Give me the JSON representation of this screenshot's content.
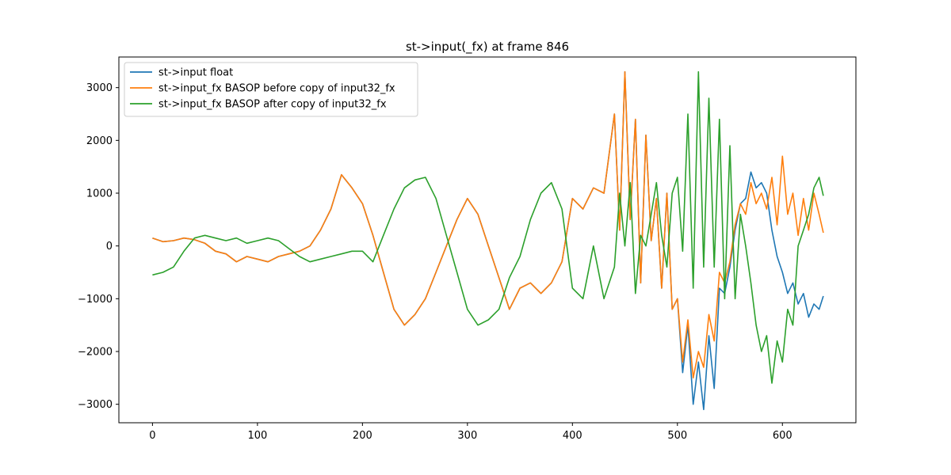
{
  "chart_data": {
    "type": "line",
    "title": "st->input(_fx) at frame 846",
    "xlabel": "",
    "ylabel": "",
    "xlim": [
      -32,
      670
    ],
    "ylim": [
      -3350,
      3580
    ],
    "x_ticks": [
      0,
      100,
      200,
      300,
      400,
      500,
      600
    ],
    "y_ticks": [
      -3000,
      -2000,
      -1000,
      0,
      1000,
      2000,
      3000
    ],
    "x_tick_labels": [
      "0",
      "100",
      "200",
      "300",
      "400",
      "500",
      "600"
    ],
    "y_tick_labels": [
      "−3000",
      "−2000",
      "−1000",
      "0",
      "1000",
      "2000",
      "3000"
    ],
    "grid": false,
    "legend_position": "top-left",
    "x": [
      0,
      10,
      20,
      30,
      40,
      50,
      60,
      70,
      80,
      90,
      100,
      110,
      120,
      130,
      140,
      150,
      160,
      170,
      180,
      190,
      200,
      210,
      220,
      230,
      240,
      250,
      260,
      270,
      280,
      290,
      300,
      310,
      320,
      330,
      340,
      350,
      360,
      370,
      380,
      390,
      400,
      410,
      420,
      430,
      440,
      445,
      450,
      455,
      460,
      465,
      470,
      475,
      480,
      485,
      490,
      495,
      500,
      505,
      510,
      515,
      520,
      525,
      530,
      535,
      540,
      545,
      550,
      555,
      560,
      565,
      570,
      575,
      580,
      585,
      590,
      595,
      600,
      605,
      610,
      615,
      620,
      625,
      630,
      635,
      639
    ],
    "series": [
      {
        "name": "st->input float",
        "color": "#1f77b4",
        "values": [
          150,
          80,
          100,
          150,
          120,
          50,
          -100,
          -150,
          -300,
          -200,
          -250,
          -300,
          -200,
          -150,
          -100,
          0,
          300,
          700,
          1350,
          1100,
          800,
          200,
          -500,
          -1200,
          -1500,
          -1300,
          -1000,
          -500,
          0,
          500,
          900,
          600,
          0,
          -600,
          -1200,
          -800,
          -700,
          -900,
          -700,
          -300,
          900,
          700,
          1100,
          1000,
          2500,
          300,
          3300,
          500,
          2400,
          -700,
          2100,
          100,
          900,
          -800,
          1000,
          -1200,
          -1000,
          -2400,
          -1500,
          -3000,
          -2200,
          -3100,
          -1700,
          -2700,
          -800,
          -900,
          -400,
          300,
          800,
          900,
          1400,
          1100,
          1200,
          1000,
          300,
          -200,
          -500,
          -900,
          -700,
          -1100,
          -900,
          -1350,
          -1100,
          -1200,
          -950
        ]
      },
      {
        "name": "st->input_fx BASOP before copy of input32_fx",
        "color": "#ff7f0e",
        "values": [
          150,
          80,
          100,
          150,
          120,
          50,
          -100,
          -150,
          -300,
          -200,
          -250,
          -300,
          -200,
          -150,
          -100,
          0,
          300,
          700,
          1350,
          1100,
          800,
          200,
          -500,
          -1200,
          -1500,
          -1300,
          -1000,
          -500,
          0,
          500,
          900,
          600,
          0,
          -600,
          -1200,
          -800,
          -700,
          -900,
          -700,
          -300,
          900,
          700,
          1100,
          1000,
          2500,
          300,
          3300,
          500,
          2400,
          -700,
          2100,
          100,
          900,
          -800,
          1000,
          -1200,
          -1000,
          -2200,
          -1400,
          -2500,
          -2000,
          -2300,
          -1300,
          -1800,
          -500,
          -700,
          -300,
          400,
          800,
          600,
          1200,
          800,
          1000,
          700,
          1300,
          400,
          1700,
          600,
          1000,
          200,
          900,
          300,
          1000,
          600,
          250
        ]
      },
      {
        "name": "st->input_fx BASOP after copy of input32_fx",
        "color": "#2ca02c",
        "values": [
          -550,
          -500,
          -400,
          -100,
          150,
          200,
          150,
          100,
          150,
          50,
          100,
          150,
          100,
          -50,
          -200,
          -300,
          -250,
          -200,
          -150,
          -100,
          -100,
          -300,
          200,
          700,
          1100,
          1250,
          1300,
          900,
          200,
          -500,
          -1200,
          -1500,
          -1400,
          -1200,
          -600,
          -200,
          500,
          1000,
          1200,
          700,
          -800,
          -1000,
          0,
          -1000,
          -400,
          1000,
          0,
          1200,
          -900,
          200,
          0,
          600,
          1200,
          200,
          -400,
          1000,
          1300,
          -100,
          2500,
          -800,
          3300,
          -400,
          2800,
          -400,
          2400,
          -1000,
          1900,
          -1000,
          600,
          0,
          -700,
          -1500,
          -2000,
          -1700,
          -2600,
          -1800,
          -2200,
          -1200,
          -1500,
          0,
          300,
          600,
          1100,
          1300,
          950
        ]
      }
    ]
  }
}
